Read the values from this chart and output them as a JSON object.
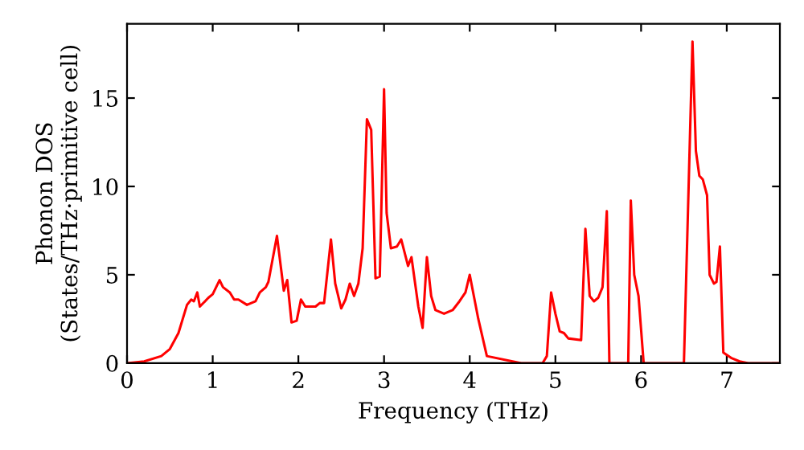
{
  "chart_data": {
    "type": "line",
    "xlabel": "Frequency (THz)",
    "ylabel": "Phonon DOS\n(States/THz·primitive cell)",
    "xlim": [
      0,
      7.62
    ],
    "ylim": [
      0,
      19.2
    ],
    "xticks": [
      0,
      1,
      2,
      3,
      4,
      5,
      6,
      7
    ],
    "yticks": [
      0,
      5,
      10,
      15
    ],
    "grid": false,
    "legend": false,
    "marker": "none",
    "line_style": "solid",
    "series": [
      {
        "color": "#ff0000",
        "x": [
          0,
          0.2,
          0.4,
          0.5,
          0.6,
          0.7,
          0.75,
          0.78,
          0.82,
          0.85,
          0.95,
          1.0,
          1.08,
          1.12,
          1.2,
          1.25,
          1.3,
          1.4,
          1.5,
          1.55,
          1.62,
          1.65,
          1.75,
          1.83,
          1.87,
          1.92,
          1.98,
          2.03,
          2.08,
          2.2,
          2.25,
          2.3,
          2.38,
          2.43,
          2.5,
          2.55,
          2.6,
          2.65,
          2.7,
          2.75,
          2.8,
          2.85,
          2.9,
          2.95,
          3.0,
          3.03,
          3.08,
          3.15,
          3.2,
          3.28,
          3.32,
          3.4,
          3.45,
          3.5,
          3.55,
          3.6,
          3.7,
          3.8,
          3.88,
          3.95,
          4.0,
          4.1,
          4.2,
          4.5,
          4.6,
          4.85,
          4.9,
          4.95,
          5.0,
          5.05,
          5.1,
          5.15,
          5.3,
          5.35,
          5.4,
          5.45,
          5.5,
          5.55,
          5.6,
          5.63,
          5.85,
          5.88,
          5.92,
          5.97,
          6.03,
          6.5,
          6.6,
          6.64,
          6.68,
          6.72,
          6.77,
          6.8,
          6.85,
          6.88,
          6.92,
          6.96,
          7.05,
          7.15,
          7.25,
          7.62
        ],
        "values": [
          0,
          0.1,
          0.4,
          0.8,
          1.7,
          3.3,
          3.6,
          3.5,
          4.0,
          3.2,
          3.7,
          3.9,
          4.7,
          4.3,
          4.0,
          3.6,
          3.6,
          3.3,
          3.5,
          4.0,
          4.3,
          4.6,
          7.2,
          4.1,
          4.7,
          2.3,
          2.4,
          3.6,
          3.2,
          3.2,
          3.4,
          3.4,
          7.0,
          4.5,
          3.1,
          3.6,
          4.5,
          3.8,
          4.5,
          6.5,
          13.8,
          13.2,
          4.8,
          4.9,
          15.5,
          8.5,
          6.5,
          6.6,
          7.0,
          5.5,
          6.0,
          3.2,
          2.0,
          6.0,
          3.8,
          3.0,
          2.8,
          3.0,
          3.5,
          4.0,
          5.0,
          2.5,
          0.4,
          0.1,
          0,
          0,
          0.4,
          4.0,
          2.8,
          1.8,
          1.7,
          1.4,
          1.3,
          7.6,
          3.8,
          3.5,
          3.7,
          4.3,
          8.6,
          0,
          0,
          9.2,
          5.0,
          3.8,
          0,
          0,
          18.2,
          12,
          10.6,
          10.4,
          9.5,
          5.0,
          4.5,
          4.6,
          6.6,
          0.6,
          0.3,
          0.1,
          0,
          0
        ]
      }
    ]
  }
}
